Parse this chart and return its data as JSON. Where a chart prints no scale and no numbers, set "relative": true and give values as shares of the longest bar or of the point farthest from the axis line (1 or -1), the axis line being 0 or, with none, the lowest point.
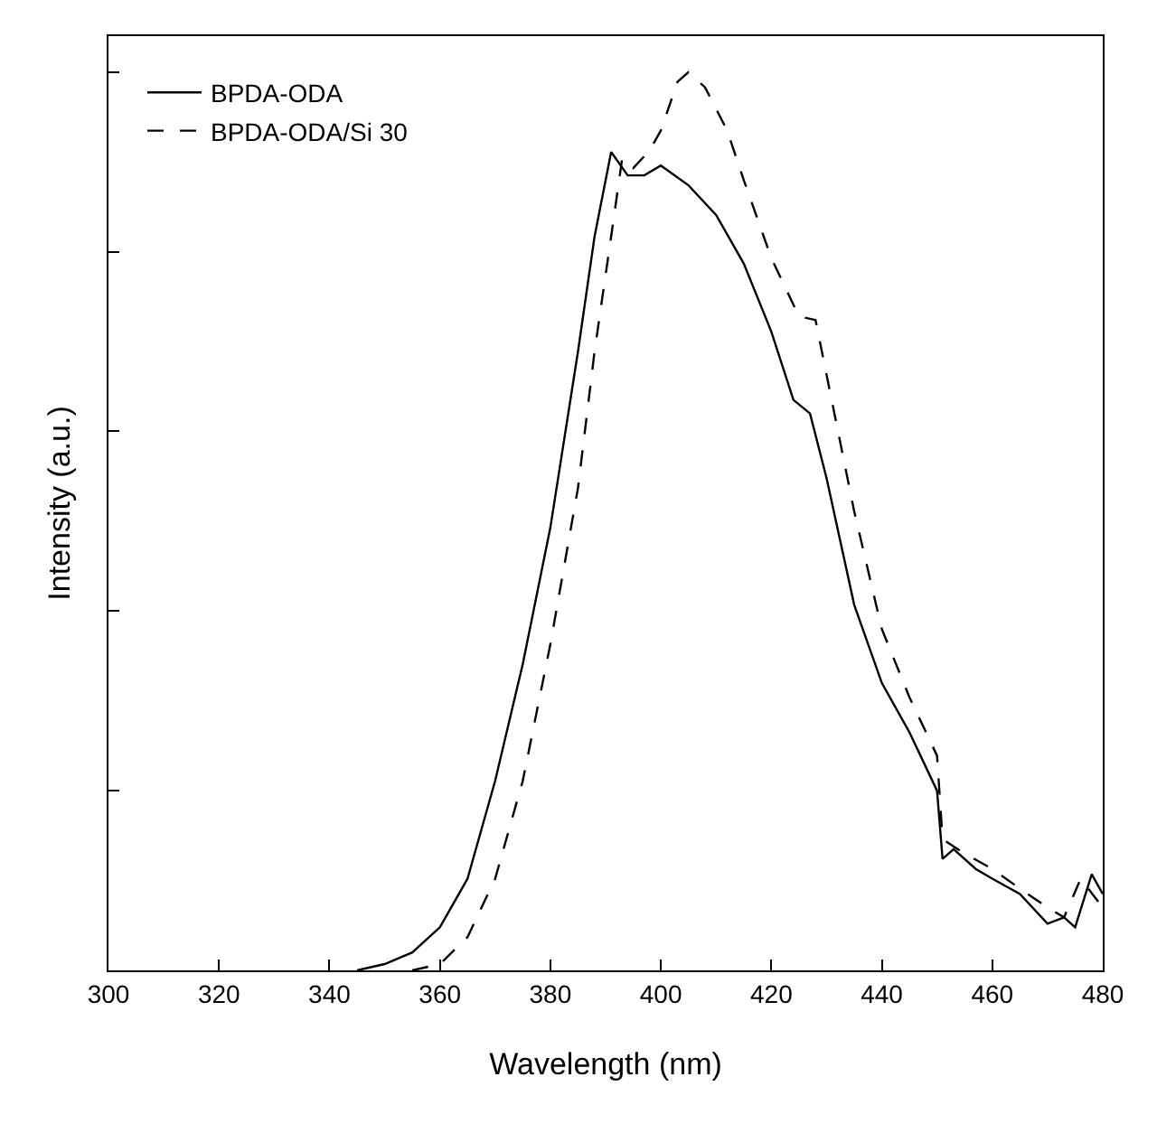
{
  "chart_data": {
    "type": "line",
    "xlabel": "Wavelength (nm)",
    "ylabel": "Intensity (a.u.)",
    "relative": true,
    "xlim": [
      300,
      480
    ],
    "xticks": [
      300,
      320,
      340,
      360,
      380,
      400,
      420,
      440,
      460,
      480
    ],
    "legend": "top left",
    "grid": false,
    "marker": "none",
    "series": [
      {
        "name": "BPDA-ODA",
        "color": "#000000",
        "line_style": "solid",
        "x": [
          345,
          350,
          355,
          360,
          365,
          370,
          375,
          380,
          385,
          388,
          391,
          394,
          397,
          400,
          405,
          410,
          415,
          420,
          424,
          427,
          430,
          435,
          440,
          445,
          450,
          451,
          453,
          457,
          460,
          465,
          470,
          473,
          475,
          478,
          480
        ],
        "values": [
          0,
          0.007,
          0.02,
          0.048,
          0.102,
          0.211,
          0.341,
          0.493,
          0.689,
          0.817,
          0.911,
          0.885,
          0.885,
          0.896,
          0.874,
          0.841,
          0.787,
          0.711,
          0.635,
          0.62,
          0.548,
          0.407,
          0.32,
          0.265,
          0.2,
          0.124,
          0.135,
          0.113,
          0.102,
          0.085,
          0.052,
          0.059,
          0.048,
          0.107,
          0.085
        ]
      },
      {
        "name": "BPDA-ODA/Si 30",
        "color": "#000000",
        "line_style": "dashed",
        "x": [
          355,
          360,
          365,
          370,
          375,
          380,
          385,
          388,
          391,
          393,
          395,
          398,
          400,
          403,
          405,
          408,
          412,
          415,
          420,
          425,
          428,
          430,
          435,
          440,
          445,
          450,
          451,
          455,
          460,
          465,
          470,
          473,
          476,
          480
        ],
        "values": [
          0,
          0.007,
          0.037,
          0.102,
          0.211,
          0.363,
          0.537,
          0.689,
          0.817,
          0.904,
          0.893,
          0.913,
          0.935,
          0.989,
          1,
          0.983,
          0.935,
          0.88,
          0.793,
          0.728,
          0.724,
          0.663,
          0.511,
          0.38,
          0.304,
          0.239,
          0.146,
          0.13,
          0.113,
          0.091,
          0.07,
          0.059,
          0.102,
          0.07
        ]
      }
    ]
  }
}
